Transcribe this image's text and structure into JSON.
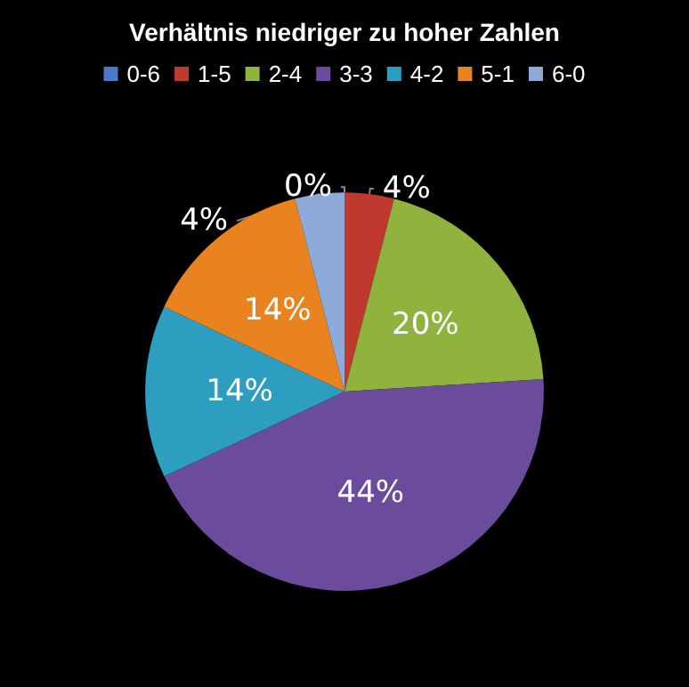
{
  "chart_data": {
    "type": "pie",
    "title": "Verhältnis niedriger zu hoher Zahlen",
    "categories": [
      "0-6",
      "1-5",
      "2-4",
      "3-3",
      "4-2",
      "5-1",
      "6-0"
    ],
    "values": [
      0,
      4,
      20,
      44,
      14,
      14,
      4
    ],
    "colors": [
      "#4a7ac8",
      "#c0392f",
      "#8fb33c",
      "#6b4b9c",
      "#2e9ec0",
      "#e8831f",
      "#8eaad9"
    ],
    "value_labels": [
      "0%",
      "4%",
      "20%",
      "44%",
      "14%",
      "14%",
      "4%"
    ],
    "legend": "top"
  }
}
